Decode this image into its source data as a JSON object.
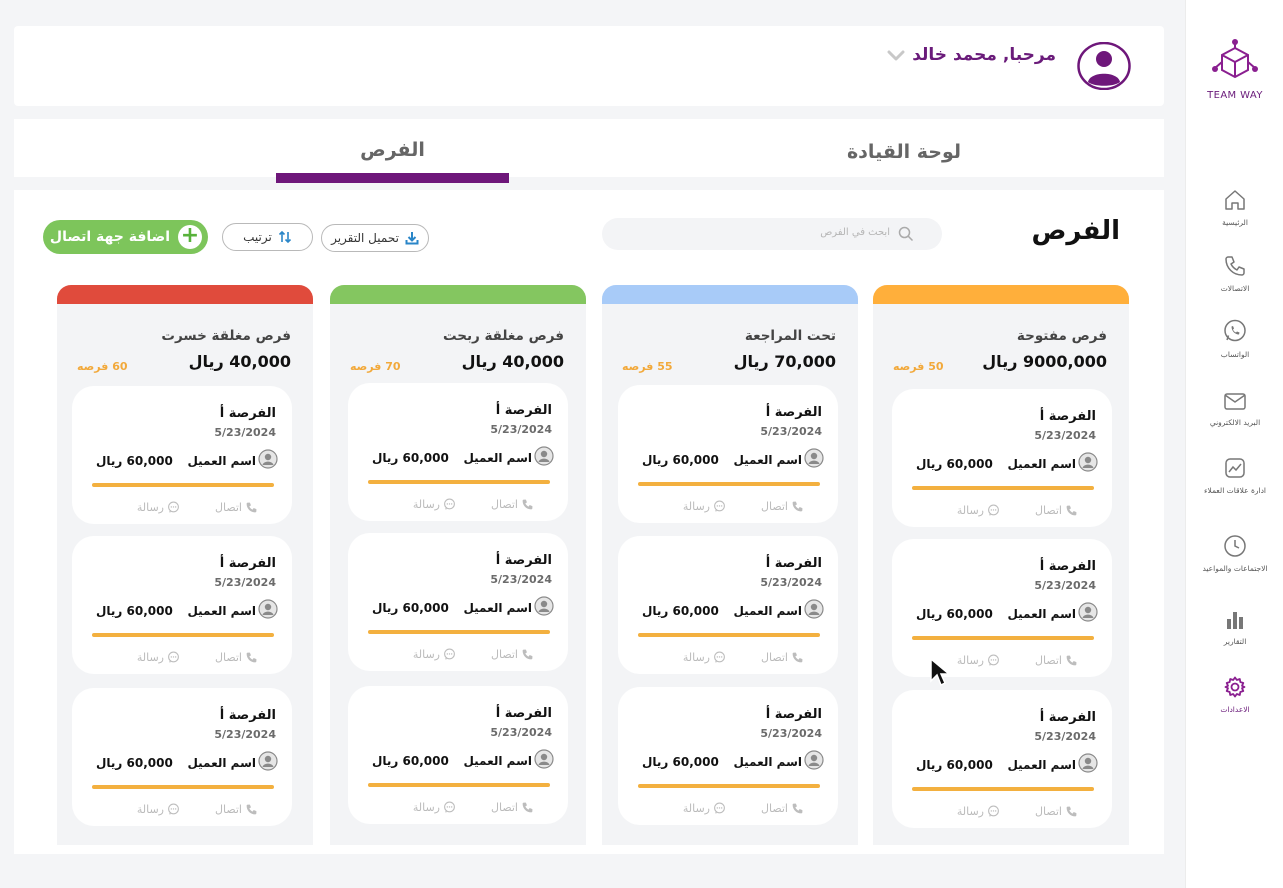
{
  "sidebar": {
    "logo_text": "TEAM WAY",
    "items": [
      {
        "label": "الرئيسية",
        "icon": "home-icon"
      },
      {
        "label": "الاتصالات",
        "icon": "phone-icon"
      },
      {
        "label": "الواتساب",
        "icon": "whatsapp-icon"
      },
      {
        "label": "البريد الالكتروني",
        "icon": "mail-icon"
      },
      {
        "label": "ادارة علاقات العملاء",
        "icon": "chart-line-icon"
      },
      {
        "label": "الاجتماعات والمواعيد",
        "icon": "clock-icon"
      },
      {
        "label": "التقارير",
        "icon": "bar-chart-icon"
      },
      {
        "label": "الاعدادات",
        "icon": "gear-icon",
        "active": true
      }
    ]
  },
  "header": {
    "greeting": "مرحبا,  محمد خالد"
  },
  "tabs": [
    {
      "label": "الفرص",
      "active": true
    },
    {
      "label": "لوحة القيادة",
      "active": false
    }
  ],
  "main": {
    "title": "الفرص",
    "search_placeholder": "ابحث في الفرص",
    "report_button": "تحميل التقرير",
    "sort_button": "ترتيب",
    "add_button": "اضافة جهة اتصال"
  },
  "colors": {
    "brand": "#6e177a",
    "open": "#ffaf3b",
    "review": "#a8cbf8",
    "won": "#84c660",
    "lost": "#e04b3c",
    "progress": "#f3b03f"
  },
  "columns": [
    {
      "title": "فرص مفتوحة",
      "amount": "9000,000 ريال",
      "count": "50 فرصه",
      "cards": [
        {
          "title": "الفرصة أ",
          "date": "5/23/2024",
          "client": "اسم العميل",
          "amount": "60,000 ريال",
          "call": "اتصال",
          "message": "رسالة"
        },
        {
          "title": "الفرصة أ",
          "date": "5/23/2024",
          "client": "اسم العميل",
          "amount": "60,000 ريال",
          "call": "اتصال",
          "message": "رسالة"
        },
        {
          "title": "الفرصة أ",
          "date": "5/23/2024",
          "client": "اسم العميل",
          "amount": "60,000 ريال",
          "call": "اتصال",
          "message": "رسالة"
        }
      ]
    },
    {
      "title": "تحت المراجعة",
      "amount": "70,000 ريال",
      "count": "55 فرصه",
      "cards": [
        {
          "title": "الفرصة أ",
          "date": "5/23/2024",
          "client": "اسم العميل",
          "amount": "60,000 ريال",
          "call": "اتصال",
          "message": "رسالة"
        },
        {
          "title": "الفرصة أ",
          "date": "5/23/2024",
          "client": "اسم العميل",
          "amount": "60,000 ريال",
          "call": "اتصال",
          "message": "رسالة"
        },
        {
          "title": "الفرصة أ",
          "date": "5/23/2024",
          "client": "اسم العميل",
          "amount": "60,000 ريال",
          "call": "اتصال",
          "message": "رسالة"
        }
      ]
    },
    {
      "title": "فرص مغلقة ربحت",
      "amount": "40,000 ريال",
      "count": "70 فرصه",
      "cards": [
        {
          "title": "الفرصة أ",
          "date": "5/23/2024",
          "client": "اسم العميل",
          "amount": "60,000 ريال",
          "call": "اتصال",
          "message": "رسالة"
        },
        {
          "title": "الفرصة أ",
          "date": "5/23/2024",
          "client": "اسم العميل",
          "amount": "60,000 ريال",
          "call": "اتصال",
          "message": "رسالة"
        },
        {
          "title": "الفرصة أ",
          "date": "5/23/2024",
          "client": "اسم العميل",
          "amount": "60,000 ريال",
          "call": "اتصال",
          "message": "رسالة"
        }
      ]
    },
    {
      "title": "فرص مغلقة خسرت",
      "amount": "40,000 ريال",
      "count": "60 فرصه",
      "cards": [
        {
          "title": "الفرصة أ",
          "date": "5/23/2024",
          "client": "اسم العميل",
          "amount": "60,000 ريال",
          "call": "اتصال",
          "message": "رسالة"
        },
        {
          "title": "الفرصة أ",
          "date": "5/23/2024",
          "client": "اسم العميل",
          "amount": "60,000 ريال",
          "call": "اتصال",
          "message": "رسالة"
        },
        {
          "title": "الفرصة أ",
          "date": "5/23/2024",
          "client": "اسم العميل",
          "amount": "60,000 ريال",
          "call": "اتصال",
          "message": "رسالة"
        }
      ]
    }
  ]
}
